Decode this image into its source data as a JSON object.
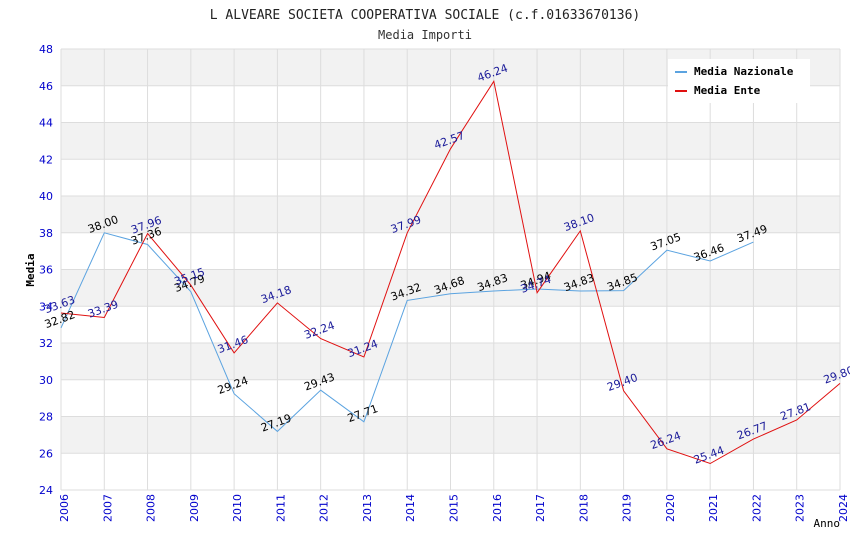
{
  "chart_data": {
    "type": "line",
    "title": "L ALVEARE SOCIETA COOPERATIVA SOCIALE (c.f.01633670136)",
    "subtitle": "Media Importi",
    "xlabel": "Anno",
    "ylabel": "Media",
    "ylim": [
      24,
      48
    ],
    "ytick_step": 2,
    "grid": true,
    "legend_position": "top-right",
    "x": [
      "2006",
      "2007",
      "2008",
      "2009",
      "2010",
      "2011",
      "2012",
      "2013",
      "2014",
      "2015",
      "2016",
      "2017",
      "2018",
      "2019",
      "2020",
      "2021",
      "2022",
      "2023",
      "2024"
    ],
    "series": [
      {
        "name": "Media Nazionale",
        "color": "#5ba3e0",
        "label_color": "#000000",
        "values": [
          32.82,
          38.0,
          37.36,
          34.79,
          29.24,
          27.19,
          29.43,
          27.71,
          34.32,
          34.68,
          34.83,
          34.94,
          34.83,
          34.85,
          37.05,
          36.46,
          37.49,
          null,
          null
        ],
        "labels": [
          "32.82",
          "38.00",
          "37.36",
          "34.79",
          "29.24",
          "27.19",
          "29.43",
          "27.71",
          "34.32",
          "34.68",
          "34.83",
          "34.94",
          "34.83",
          "34.85",
          "37.05",
          "36.46",
          "37.49",
          "",
          ""
        ]
      },
      {
        "name": "Media Ente",
        "color": "#e01010",
        "label_color": "#1a1a99",
        "values": [
          33.63,
          33.39,
          37.96,
          35.15,
          31.46,
          34.18,
          32.24,
          31.24,
          37.99,
          42.57,
          46.24,
          34.74,
          38.1,
          29.4,
          26.24,
          25.44,
          26.77,
          27.81,
          29.8
        ],
        "labels": [
          "33.63",
          "33.39",
          "37.96",
          "35.15",
          "31.46",
          "34.18",
          "32.24",
          "31.24",
          "37.99",
          "42.57",
          "46.24",
          "34.74",
          "38.10",
          "29.40",
          "26.24",
          "25.44",
          "26.77",
          "27.81",
          "29.80"
        ]
      }
    ]
  },
  "colors": {
    "band": "#f2f2f2",
    "grid": "#dddddd",
    "tick_label": "#0000cc"
  }
}
